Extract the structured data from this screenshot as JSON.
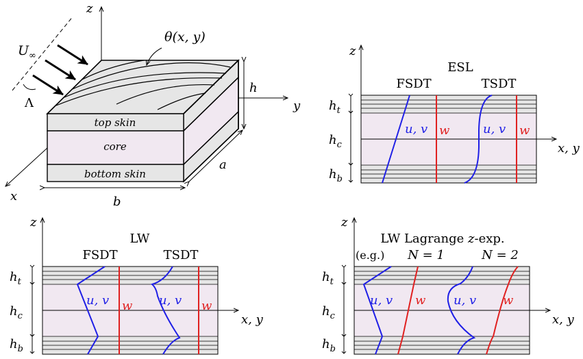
{
  "colors": {
    "core": "#f1e8f1",
    "skin": "#e6e6e6",
    "blue": "#1f1fe6",
    "red": "#e02020",
    "line": "#000000"
  },
  "box": {
    "z_axis": "z",
    "y_axis": "y",
    "x_axis": "x",
    "theta": "θ(x, y)",
    "U": "U",
    "U_sub": "∞",
    "lambda": "Λ",
    "h": "h",
    "a": "a",
    "b": "b",
    "top_skin": "top skin",
    "core": "core",
    "bottom_skin": "bottom skin"
  },
  "panels": {
    "esl": {
      "z": "z",
      "title": "ESL",
      "left_label": "FSDT",
      "right_label": "TSDT",
      "axis": "x, y",
      "ht": "h",
      "ht_sub": "t",
      "hc": "h",
      "hc_sub": "c",
      "hb": "h",
      "hb_sub": "b",
      "uv": "u, v",
      "w": "w"
    },
    "lw": {
      "z": "z",
      "title": "LW",
      "left_label": "FSDT",
      "right_label": "TSDT",
      "axis": "x, y",
      "ht": "h",
      "ht_sub": "t",
      "hc": "h",
      "hc_sub": "c",
      "hb": "h",
      "hb_sub": "b",
      "uv": "u, v",
      "w": "w"
    },
    "lag": {
      "z": "z",
      "title_a": "LW Lagrange ",
      "title_b": "z",
      "title_c": "-exp.",
      "eg": "(e.g.)",
      "left_label": "N = 1",
      "right_label": "N = 2",
      "axis": "x, y",
      "ht": "h",
      "ht_sub": "t",
      "hc": "h",
      "hc_sub": "c",
      "hb": "h",
      "hb_sub": "b",
      "uv": "u, v",
      "w": "w"
    }
  }
}
